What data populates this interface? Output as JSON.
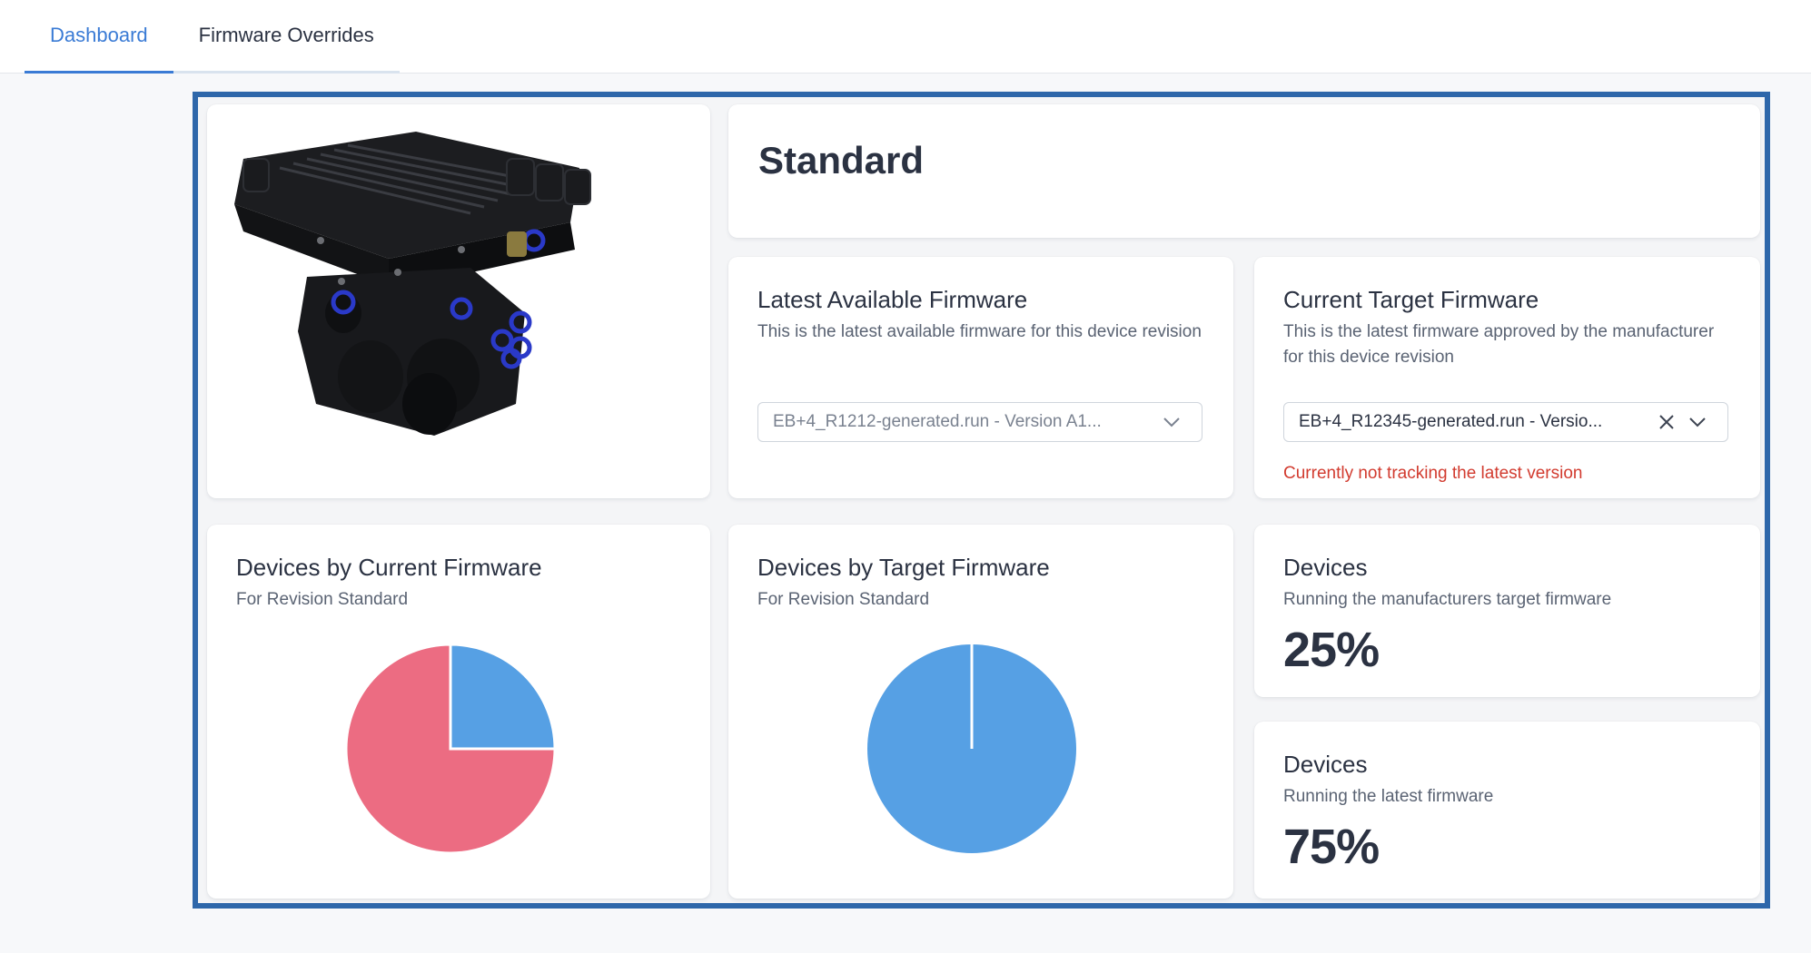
{
  "tabs": [
    {
      "label": "Dashboard",
      "active": true
    },
    {
      "label": "Firmware Overrides",
      "active": false
    }
  ],
  "device": {
    "title": "Standard",
    "image": "device-unit-image"
  },
  "latest_firmware": {
    "title": "Latest Available Firmware",
    "description": "This is the latest available firmware for this device revision",
    "selected": "EB+4_R1212-generated.run - Version A1..."
  },
  "target_firmware": {
    "title": "Current Target Firmware",
    "description": "This is the latest firmware approved by the manufacturer for this device revision",
    "selected": "EB+4_R12345-generated.run - Versio...",
    "warning": "Currently not tracking the latest version"
  },
  "current_firmware_chart": {
    "title": "Devices by Current Firmware",
    "subtitle": "For Revision Standard"
  },
  "target_firmware_chart": {
    "title": "Devices by Target Firmware",
    "subtitle": "For Revision Standard"
  },
  "stat_target": {
    "title": "Devices",
    "subtitle": "Running the manufacturers target firmware",
    "value": "25%"
  },
  "stat_latest": {
    "title": "Devices",
    "subtitle": "Running the latest firmware",
    "value": "75%"
  },
  "colors": {
    "accent": "#3a7bd5",
    "pie_blue": "#56a0e4",
    "pie_red": "#ec6c82",
    "warning": "#d23b2f",
    "frame": "#2e67aa"
  },
  "chart_data": [
    {
      "type": "pie",
      "values": [
        25,
        75
      ],
      "colors": [
        "#56a0e4",
        "#ec6c82"
      ]
    },
    {
      "type": "pie",
      "values": [
        100
      ],
      "colors": [
        "#56a0e4"
      ]
    }
  ]
}
